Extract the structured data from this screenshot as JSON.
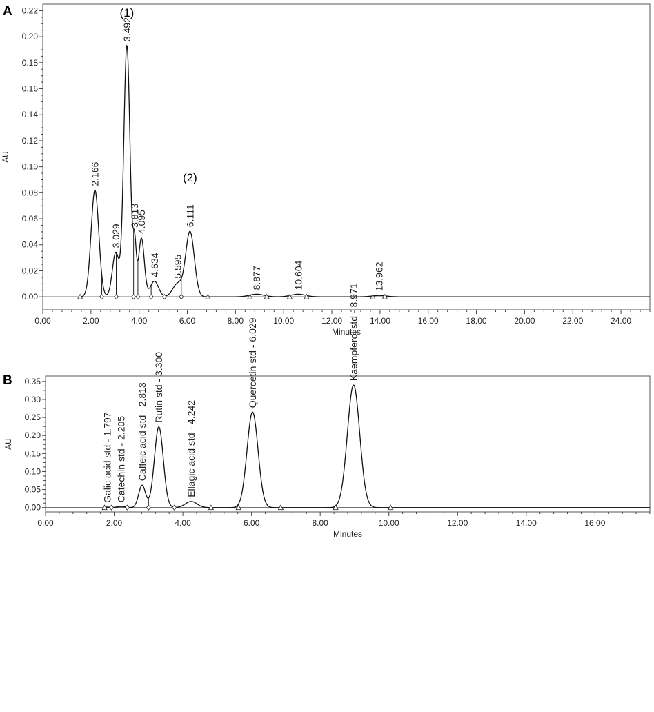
{
  "chart_data": [
    {
      "panel": "A",
      "type": "line",
      "title": "",
      "xlabel": "Minutes",
      "ylabel": "AU",
      "xlim": [
        0,
        25.2
      ],
      "ylim": [
        -0.01,
        0.225
      ],
      "xticks": [
        "0.00",
        "2.00",
        "4.00",
        "6.00",
        "8.00",
        "10.00",
        "12.00",
        "14.00",
        "16.00",
        "18.00",
        "20.00",
        "22.00",
        "24.00"
      ],
      "yticks": [
        "0.00",
        "0.02",
        "0.04",
        "0.06",
        "0.08",
        "0.10",
        "0.12",
        "0.14",
        "0.16",
        "0.18",
        "0.20",
        "0.22"
      ],
      "grid": false,
      "peaks": [
        {
          "rt": 2.166,
          "label": "2.166",
          "height": 0.082,
          "width": 0.16
        },
        {
          "rt": 3.029,
          "label": "3.029",
          "height": 0.034,
          "width": 0.14
        },
        {
          "rt": 3.492,
          "label": "3.492",
          "height": 0.193,
          "width": 0.13
        },
        {
          "rt": 3.813,
          "label": "3.813",
          "height": 0.038,
          "width": 0.07
        },
        {
          "rt": 4.095,
          "label": "4.095",
          "height": 0.045,
          "width": 0.12
        },
        {
          "rt": 4.634,
          "label": "4.634",
          "height": 0.012,
          "width": 0.17
        },
        {
          "rt": 5.595,
          "label": "5.595",
          "height": 0.01,
          "width": 0.2
        },
        {
          "rt": 6.111,
          "label": "6.111",
          "height": 0.05,
          "width": 0.18
        },
        {
          "rt": 8.877,
          "label": "8.877",
          "height": 0.002,
          "width": 0.3
        },
        {
          "rt": 10.604,
          "label": "10.604",
          "height": 0.002,
          "width": 0.3
        },
        {
          "rt": 13.962,
          "label": "13.962",
          "height": 0.001,
          "width": 0.3
        }
      ],
      "annotations": [
        {
          "text": "(1)",
          "rt": 3.492
        },
        {
          "text": "(2)",
          "rt": 6.111
        }
      ],
      "triangle_markers": [
        1.55,
        6.85,
        8.6,
        9.3,
        10.25,
        10.95,
        13.7,
        14.2
      ],
      "diamond_markers": [
        2.45,
        3.05,
        3.77,
        3.95,
        4.5,
        5.05,
        5.75
      ]
    },
    {
      "panel": "B",
      "type": "line",
      "title": "",
      "xlabel": "Minutes",
      "ylabel": "AU",
      "xlim": [
        0,
        17.6
      ],
      "ylim": [
        -0.012,
        0.365
      ],
      "xticks": [
        "0.00",
        "2.00",
        "4.00",
        "6.00",
        "8.00",
        "10.00",
        "12.00",
        "14.00",
        "16.00"
      ],
      "yticks": [
        "0.00",
        "0.05",
        "0.10",
        "0.15",
        "0.20",
        "0.25",
        "0.30",
        "0.35"
      ],
      "grid": false,
      "peaks": [
        {
          "rt": 1.797,
          "label": "Galic acid std - 1.797",
          "height": 0.0015,
          "width": 0.1
        },
        {
          "rt": 2.205,
          "label": "Catechin std - 2.205",
          "height": 0.003,
          "width": 0.12
        },
        {
          "rt": 2.813,
          "label": "Caffeic acid std - 2.813",
          "height": 0.062,
          "width": 0.1
        },
        {
          "rt": 3.3,
          "label": "Rutin std - 3.300",
          "height": 0.224,
          "width": 0.13
        },
        {
          "rt": 4.242,
          "label": "Ellagic acid std - 4.242",
          "height": 0.017,
          "width": 0.17
        },
        {
          "rt": 6.029,
          "label": "Quercetin std - 6.029",
          "height": 0.265,
          "width": 0.16
        },
        {
          "rt": 8.971,
          "label": "Kaempferol std - 8.971",
          "height": 0.34,
          "width": 0.18
        }
      ],
      "triangle_markers": [
        1.72,
        4.82,
        5.62,
        6.85,
        8.45,
        10.05
      ],
      "diamond_markers": [
        1.92,
        2.38,
        3.0,
        3.75
      ]
    }
  ],
  "panels": [
    {
      "letter": "A"
    },
    {
      "letter": "B"
    }
  ]
}
